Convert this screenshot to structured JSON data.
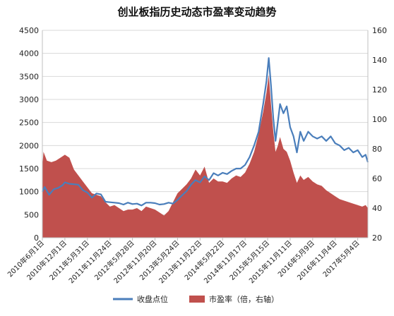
{
  "chart_data": {
    "type": "area",
    "title": "创业板指历史动态市盈率变动趋势",
    "y_left": {
      "min": 0,
      "max": 4500,
      "ticks": [
        0,
        500,
        1000,
        1500,
        2000,
        2500,
        3000,
        3500,
        4000,
        4500
      ]
    },
    "y_right": {
      "min": 20,
      "max": 160,
      "ticks": [
        20,
        40,
        60,
        80,
        100,
        120,
        140,
        160
      ]
    },
    "x_tick_labels": [
      "2010年6月1日",
      "2010年12月1日",
      "2011年5月31日",
      "2011年11月24日",
      "2012年5月28日",
      "2012年11月20日",
      "2013年5月24日",
      "2013年11月22日",
      "2014年5月22日",
      "2014年11月17日",
      "2015年5月15日",
      "2015年11月11日",
      "2016年5月9日",
      "2016年11月4日",
      "2017年5月4日"
    ],
    "x_domain": [
      0,
      14.45
    ],
    "legend": {
      "position": "bottom"
    },
    "series": [
      {
        "name": "收盘点位",
        "axis": "left",
        "style": "line",
        "color": "#4A7EBB",
        "x": [
          0,
          0.1,
          0.3,
          0.5,
          0.7,
          0.9,
          1.0,
          1.2,
          1.4,
          1.6,
          1.8,
          2.0,
          2.2,
          2.4,
          2.6,
          2.8,
          3.0,
          3.2,
          3.4,
          3.6,
          3.8,
          4.0,
          4.2,
          4.4,
          4.6,
          4.8,
          5.0,
          5.2,
          5.4,
          5.6,
          5.8,
          6.0,
          6.2,
          6.4,
          6.6,
          6.8,
          7.0,
          7.2,
          7.4,
          7.6,
          7.8,
          8.0,
          8.2,
          8.4,
          8.6,
          8.8,
          9.0,
          9.2,
          9.4,
          9.6,
          9.8,
          9.95,
          10.05,
          10.15,
          10.25,
          10.35,
          10.45,
          10.55,
          10.7,
          10.85,
          11.0,
          11.15,
          11.3,
          11.45,
          11.6,
          11.8,
          12.0,
          12.2,
          12.4,
          12.6,
          12.8,
          13.0,
          13.2,
          13.4,
          13.6,
          13.8,
          14.0,
          14.2,
          14.35,
          14.45
        ],
        "y": [
          1000,
          1100,
          930,
          1050,
          1080,
          1140,
          1200,
          1170,
          1160,
          1150,
          1030,
          980,
          870,
          960,
          940,
          780,
          770,
          760,
          750,
          720,
          760,
          730,
          740,
          700,
          760,
          760,
          750,
          720,
          730,
          760,
          740,
          820,
          920,
          1010,
          1150,
          1250,
          1200,
          1330,
          1250,
          1400,
          1350,
          1410,
          1380,
          1450,
          1500,
          1500,
          1580,
          1750,
          2000,
          2300,
          2900,
          3400,
          3900,
          3300,
          2600,
          2100,
          2500,
          2900,
          2700,
          2850,
          2400,
          2200,
          1850,
          2300,
          2100,
          2300,
          2200,
          2150,
          2200,
          2100,
          2200,
          2050,
          2000,
          1900,
          1950,
          1850,
          1900,
          1750,
          1800,
          1640
        ]
      },
      {
        "name": "市盈率（倍，右轴）",
        "axis": "right",
        "style": "area",
        "color": "#C0504D",
        "x": [
          0,
          0.05,
          0.2,
          0.4,
          0.6,
          0.8,
          1.0,
          1.2,
          1.4,
          1.6,
          1.8,
          2.0,
          2.2,
          2.4,
          2.6,
          2.8,
          3.0,
          3.2,
          3.4,
          3.6,
          3.8,
          4.0,
          4.2,
          4.4,
          4.6,
          4.8,
          5.0,
          5.2,
          5.4,
          5.6,
          5.8,
          6.0,
          6.2,
          6.4,
          6.6,
          6.8,
          7.0,
          7.2,
          7.4,
          7.6,
          7.8,
          8.0,
          8.2,
          8.4,
          8.6,
          8.8,
          9.0,
          9.2,
          9.4,
          9.6,
          9.8,
          9.95,
          10.05,
          10.15,
          10.25,
          10.35,
          10.45,
          10.55,
          10.7,
          10.85,
          11.0,
          11.15,
          11.3,
          11.45,
          11.6,
          11.8,
          12.0,
          12.2,
          12.4,
          12.6,
          12.8,
          13.0,
          13.2,
          13.4,
          13.6,
          13.8,
          14.0,
          14.2,
          14.35,
          14.45
        ],
        "y": [
          68,
          78,
          72,
          71,
          72,
          74,
          76,
          74,
          66,
          62,
          58,
          54,
          50,
          49,
          48,
          44,
          41,
          42,
          40,
          38,
          39,
          39,
          40,
          38,
          41,
          40,
          39,
          37,
          35,
          38,
          44,
          50,
          53,
          56,
          60,
          66,
          62,
          68,
          57,
          60,
          58,
          58,
          57,
          60,
          62,
          61,
          64,
          70,
          78,
          90,
          105,
          118,
          130,
          110,
          92,
          78,
          82,
          88,
          80,
          78,
          72,
          64,
          57,
          62,
          59,
          61,
          58,
          56,
          55,
          52,
          50,
          48,
          46,
          45,
          44,
          43,
          42,
          41,
          42,
          40
        ]
      }
    ]
  }
}
